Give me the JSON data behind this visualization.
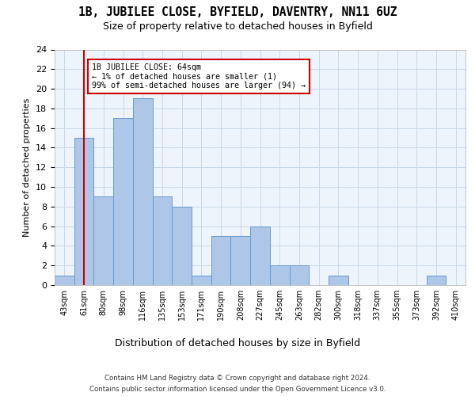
{
  "title_line1": "1B, JUBILEE CLOSE, BYFIELD, DAVENTRY, NN11 6UZ",
  "title_line2": "Size of property relative to detached houses in Byfield",
  "xlabel": "Distribution of detached houses by size in Byfield",
  "ylabel": "Number of detached properties",
  "categories": [
    "43sqm",
    "61sqm",
    "80sqm",
    "98sqm",
    "116sqm",
    "135sqm",
    "153sqm",
    "171sqm",
    "190sqm",
    "208sqm",
    "227sqm",
    "245sqm",
    "263sqm",
    "282sqm",
    "300sqm",
    "318sqm",
    "337sqm",
    "355sqm",
    "373sqm",
    "392sqm",
    "410sqm"
  ],
  "values": [
    1,
    15,
    9,
    17,
    19,
    9,
    8,
    1,
    5,
    5,
    6,
    2,
    2,
    0,
    1,
    0,
    0,
    0,
    0,
    1,
    0
  ],
  "bar_color": "#aec6e8",
  "bar_edge_color": "#6699cc",
  "vline_x": 1,
  "vline_color": "#cc0000",
  "annotation_text": "1B JUBILEE CLOSE: 64sqm\n← 1% of detached houses are smaller (1)\n99% of semi-detached houses are larger (94) →",
  "annotation_box_color": "#ffffff",
  "annotation_box_edge_color": "#cc0000",
  "ylim": [
    0,
    24
  ],
  "yticks": [
    0,
    2,
    4,
    6,
    8,
    10,
    12,
    14,
    16,
    18,
    20,
    22,
    24
  ],
  "grid_color": "#c8d8e8",
  "background_color": "#eef4fb",
  "footer_line1": "Contains HM Land Registry data © Crown copyright and database right 2024.",
  "footer_line2": "Contains public sector information licensed under the Open Government Licence v3.0."
}
